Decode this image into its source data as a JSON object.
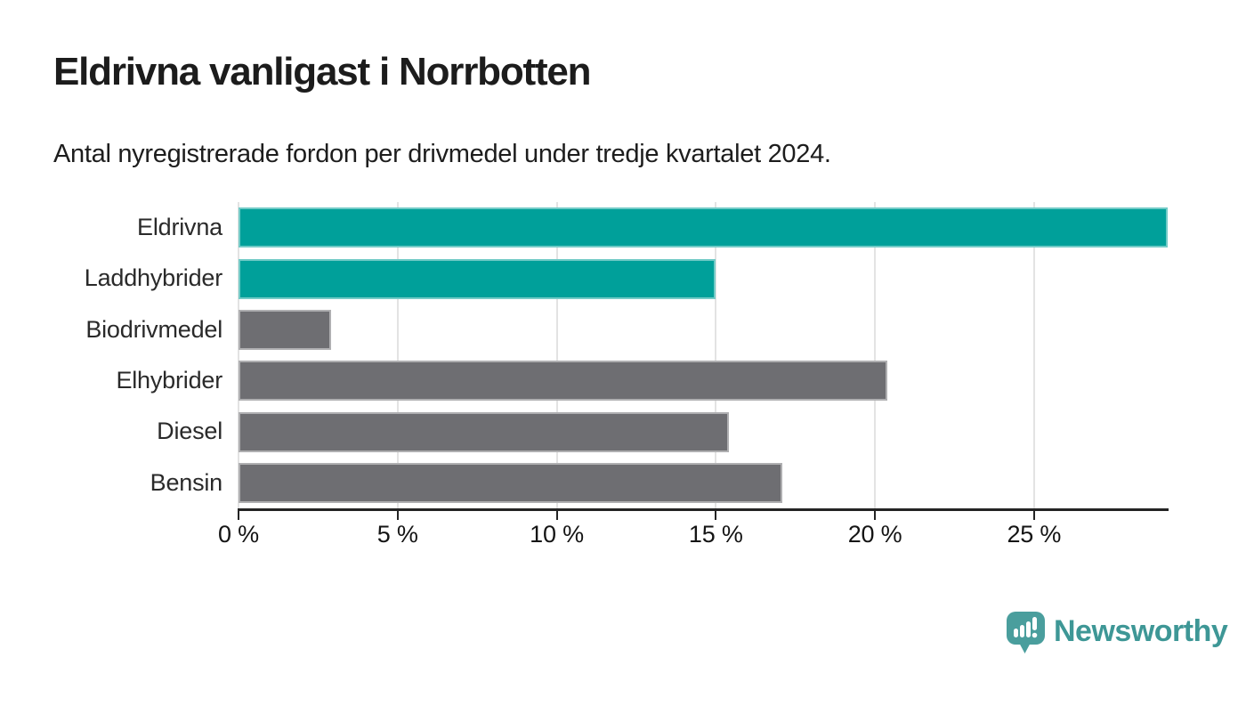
{
  "header": {
    "title": "Eldrivna vanligast i Norrbotten",
    "subtitle": "Antal nyregistrerade fordon per drivmedel under tredje kvartalet 2024."
  },
  "chart_data": {
    "type": "bar",
    "orientation": "horizontal",
    "title": "Eldrivna vanligast i Norrbotten",
    "subtitle": "Antal nyregistrerade fordon per drivmedel under tredje kvartalet 2024.",
    "categories": [
      "Eldrivna",
      "Laddhybrider",
      "Biodrivmedel",
      "Elhybrider",
      "Diesel",
      "Bensin"
    ],
    "values": [
      29.2,
      15.0,
      2.9,
      20.4,
      15.4,
      17.1
    ],
    "unit": "%",
    "bar_colors": [
      "#00a09a",
      "#00a09a",
      "#6e6e72",
      "#6e6e72",
      "#6e6e72",
      "#6e6e72"
    ],
    "x_axis": {
      "min": 0,
      "max": 29.2,
      "ticks": [
        0,
        5,
        10,
        15,
        20,
        25
      ],
      "tick_labels": [
        "0 %",
        "5 %",
        "10 %",
        "15 %",
        "20 %",
        "25 %"
      ]
    },
    "grid": "vertical",
    "legend": "none",
    "xlabel": "",
    "ylabel": ""
  },
  "footer": {
    "brand": "Newsworthy",
    "brand_icon_color": "#4a9e9d",
    "brand_text_color": "#3e9796"
  },
  "colors": {
    "highlight": "#00a09a",
    "neutral": "#6e6e72",
    "gridline": "#e3e3e3",
    "axis": "#242424",
    "text": "#1c1c1c"
  }
}
